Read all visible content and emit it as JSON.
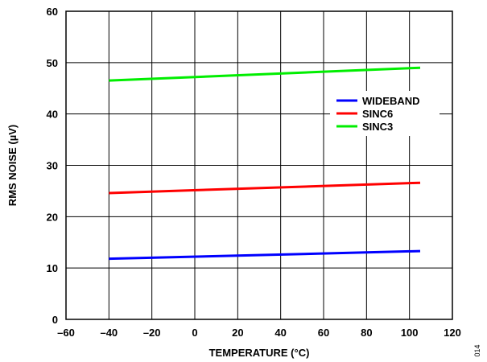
{
  "chart_data": {
    "type": "line",
    "xlabel": "TEMPERATURE (°C)",
    "ylabel": "RMS NOISE (µV)",
    "xlim": [
      -60,
      120
    ],
    "ylim": [
      0,
      60
    ],
    "xticks": [
      -60,
      -40,
      -20,
      0,
      20,
      40,
      60,
      80,
      100,
      120
    ],
    "yticks": [
      0,
      10,
      20,
      30,
      40,
      50,
      60
    ],
    "xtick_labels": [
      "–60",
      "–40",
      "–20",
      "0",
      "20",
      "40",
      "60",
      "80",
      "100",
      "120"
    ],
    "ytick_labels": [
      "0",
      "10",
      "20",
      "30",
      "40",
      "50",
      "60"
    ],
    "grid": true,
    "legend_position": "right",
    "series": [
      {
        "name": "WIDEBAND",
        "color": "#0000ff",
        "x": [
          -40,
          105
        ],
        "y": [
          11.8,
          13.3
        ]
      },
      {
        "name": "SINC6",
        "color": "#ff0000",
        "x": [
          -40,
          105
        ],
        "y": [
          24.6,
          26.6
        ]
      },
      {
        "name": "SINC3",
        "color": "#00ee00",
        "x": [
          -40,
          105
        ],
        "y": [
          46.5,
          49.0
        ]
      }
    ]
  },
  "figure_id": "014"
}
